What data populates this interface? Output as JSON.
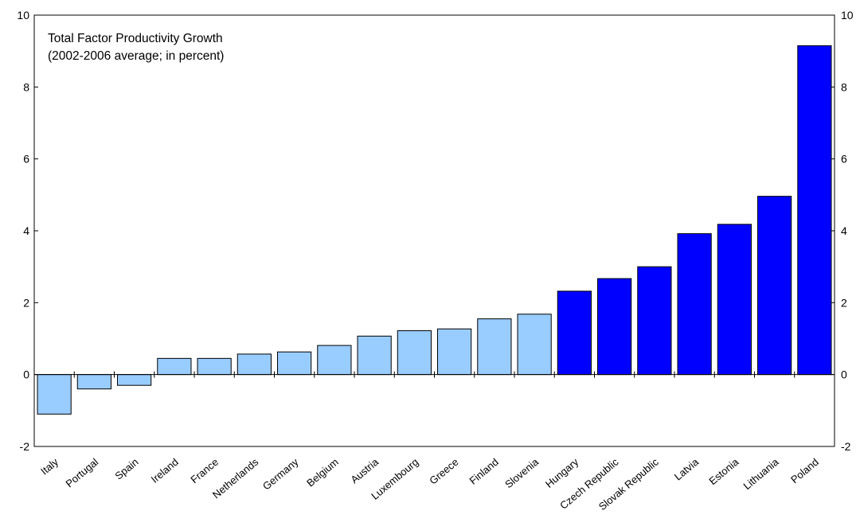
{
  "chart_data": {
    "type": "bar",
    "title": "Total Factor Productivity Growth",
    "subtitle": "(2002-2006 average; in percent)",
    "xlabel": "",
    "ylabel": "",
    "ylim": [
      -2,
      10
    ],
    "yticks": [
      -2,
      0,
      2,
      4,
      6,
      8,
      10
    ],
    "grid": false,
    "legend": "none",
    "categories": [
      "Italy",
      "Portugal",
      "Spain",
      "Ireland",
      "France",
      "Netherlands",
      "Germany",
      "Belgium",
      "Austria",
      "Luxembourg",
      "Greece",
      "Finland",
      "Slovenia",
      "Hungary",
      "Czech Republic",
      "Slovak Republic",
      "Latvia",
      "Estonia",
      "Lithuania",
      "Poland"
    ],
    "values": [
      -1.1,
      -0.4,
      -0.3,
      0.45,
      0.45,
      0.57,
      0.63,
      0.81,
      1.07,
      1.22,
      1.27,
      1.55,
      1.68,
      2.32,
      2.67,
      3.0,
      3.92,
      4.18,
      4.96,
      9.15
    ],
    "groups": [
      "light",
      "light",
      "light",
      "light",
      "light",
      "light",
      "light",
      "light",
      "light",
      "light",
      "light",
      "light",
      "light",
      "dark",
      "dark",
      "dark",
      "dark",
      "dark",
      "dark",
      "dark"
    ],
    "colors": {
      "light": "#99CCFF",
      "dark": "#0000FF",
      "outline": "#000000"
    }
  }
}
